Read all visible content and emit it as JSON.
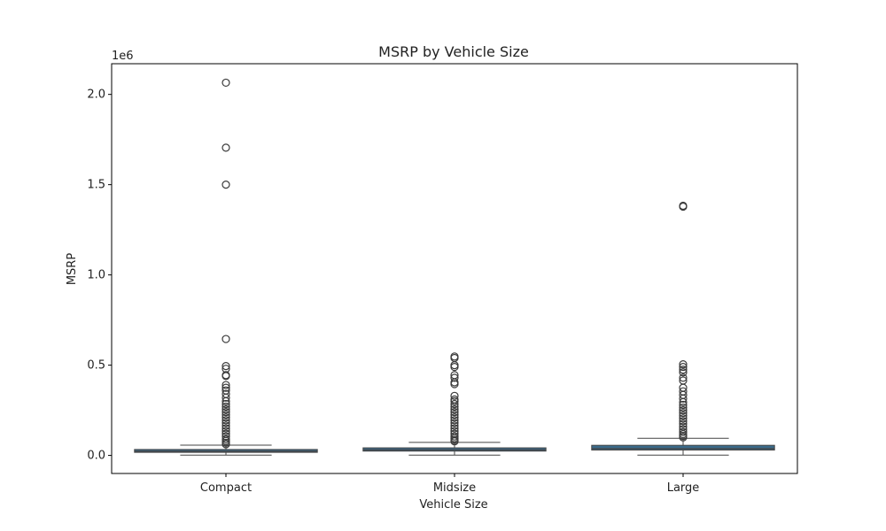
{
  "chart_data": {
    "type": "box",
    "title": "MSRP by Vehicle Size",
    "xlabel": "Vehicle Size",
    "ylabel": "MSRP",
    "y_offset_label": "1e6",
    "ylim": [
      -100000,
      2170000
    ],
    "yticks": [
      {
        "value": 0,
        "label": "0.0"
      },
      {
        "value": 500000,
        "label": "0.5"
      },
      {
        "value": 1000000,
        "label": "1.0"
      },
      {
        "value": 1500000,
        "label": "1.5"
      },
      {
        "value": 2000000,
        "label": "2.0"
      }
    ],
    "categories": [
      "Compact",
      "Midsize",
      "Large"
    ],
    "box_color": "#3a6b8c",
    "boxes": [
      {
        "category": "Compact",
        "whisker_low": 2000,
        "q1": 17000,
        "median": 23000,
        "q3": 33000,
        "whisker_high": 57000,
        "outliers": [
          2065000,
          1705000,
          1500000,
          645000,
          495000,
          480000,
          445000,
          440000,
          390000,
          375000,
          360000,
          340000,
          320000,
          300000,
          285000,
          270000,
          255000,
          240000,
          225000,
          210000,
          195000,
          180000,
          165000,
          150000,
          135000,
          120000,
          105000,
          90000,
          80000,
          70000,
          62000
        ]
      },
      {
        "category": "Midsize",
        "whisker_low": 2000,
        "q1": 24000,
        "median": 31000,
        "q3": 42000,
        "whisker_high": 72000,
        "outliers": [
          548000,
          540000,
          500000,
          490000,
          445000,
          430000,
          405000,
          395000,
          330000,
          310000,
          300000,
          285000,
          270000,
          255000,
          240000,
          225000,
          210000,
          195000,
          180000,
          165000,
          150000,
          135000,
          120000,
          105000,
          95000,
          85000,
          78000
        ]
      },
      {
        "category": "Large",
        "whisker_low": 2000,
        "q1": 30000,
        "median": 38000,
        "q3": 56000,
        "whisker_high": 95000,
        "outliers": [
          1383000,
          1378000,
          505000,
          490000,
          475000,
          460000,
          430000,
          415000,
          375000,
          355000,
          335000,
          315000,
          295000,
          280000,
          265000,
          250000,
          235000,
          220000,
          205000,
          190000,
          175000,
          160000,
          145000,
          130000,
          118000,
          108000,
          100000
        ]
      }
    ]
  }
}
